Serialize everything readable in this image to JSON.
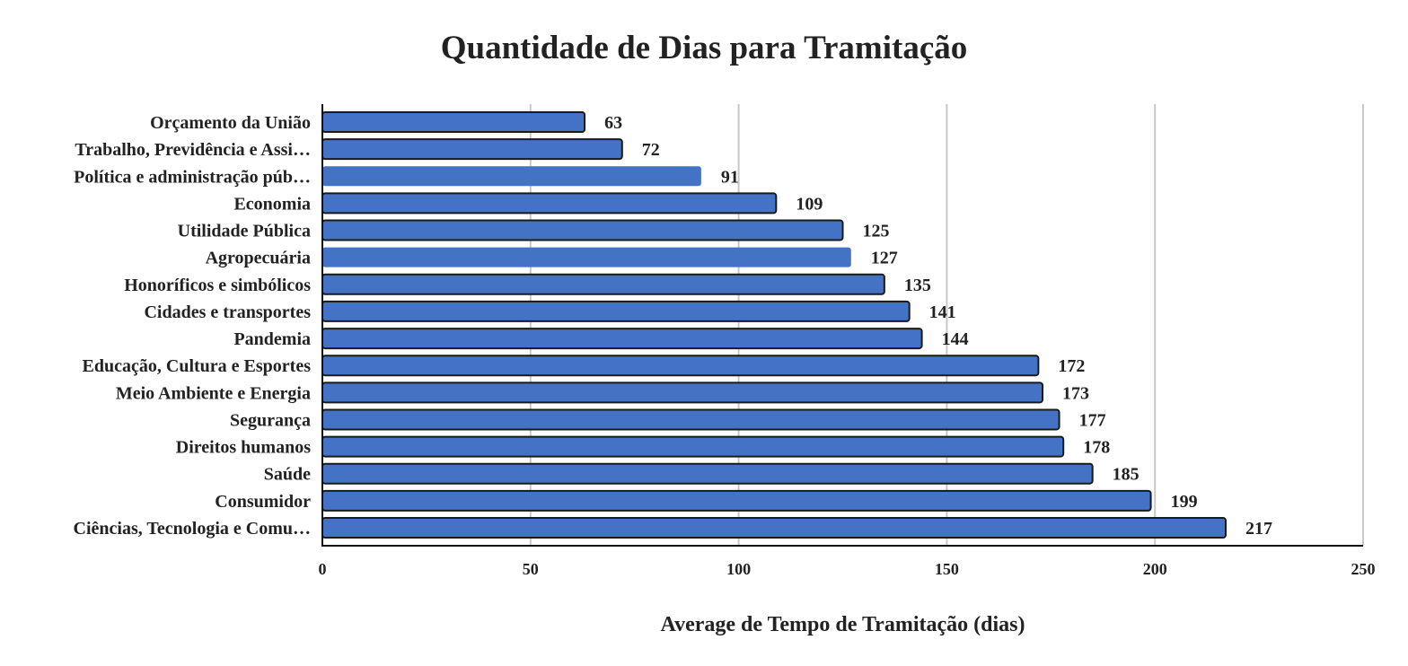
{
  "chart_data": {
    "type": "bar",
    "orientation": "horizontal",
    "title": "Quantidade de Dias para Tramitação",
    "xlabel": "Average de Tempo de Tramitação (dias)",
    "ylabel": "",
    "xlim": [
      0,
      250
    ],
    "xticks": [
      0,
      50,
      100,
      150,
      200,
      250
    ],
    "grid": true,
    "legend": "none",
    "bar_color": "#4472C4",
    "categories": [
      "Orçamento da União",
      "Trabalho, Previdência e Assi…",
      "Política e administração púb…",
      "Economia",
      "Utilidade Pública",
      "Agropecuária",
      "Honoríficos e simbólicos",
      "Cidades e transportes",
      "Pandemia",
      "Educação, Cultura e Esportes",
      "Meio Ambiente e Energia",
      "Segurança",
      "Direitos humanos",
      "Saúde",
      "Consumidor",
      "Ciências, Tecnologia e Comu…"
    ],
    "values": [
      63,
      72,
      91,
      109,
      125,
      127,
      135,
      141,
      144,
      172,
      173,
      177,
      178,
      185,
      199,
      217
    ],
    "outlined": [
      true,
      true,
      false,
      true,
      true,
      false,
      true,
      true,
      true,
      true,
      true,
      true,
      true,
      true,
      true,
      true
    ]
  }
}
